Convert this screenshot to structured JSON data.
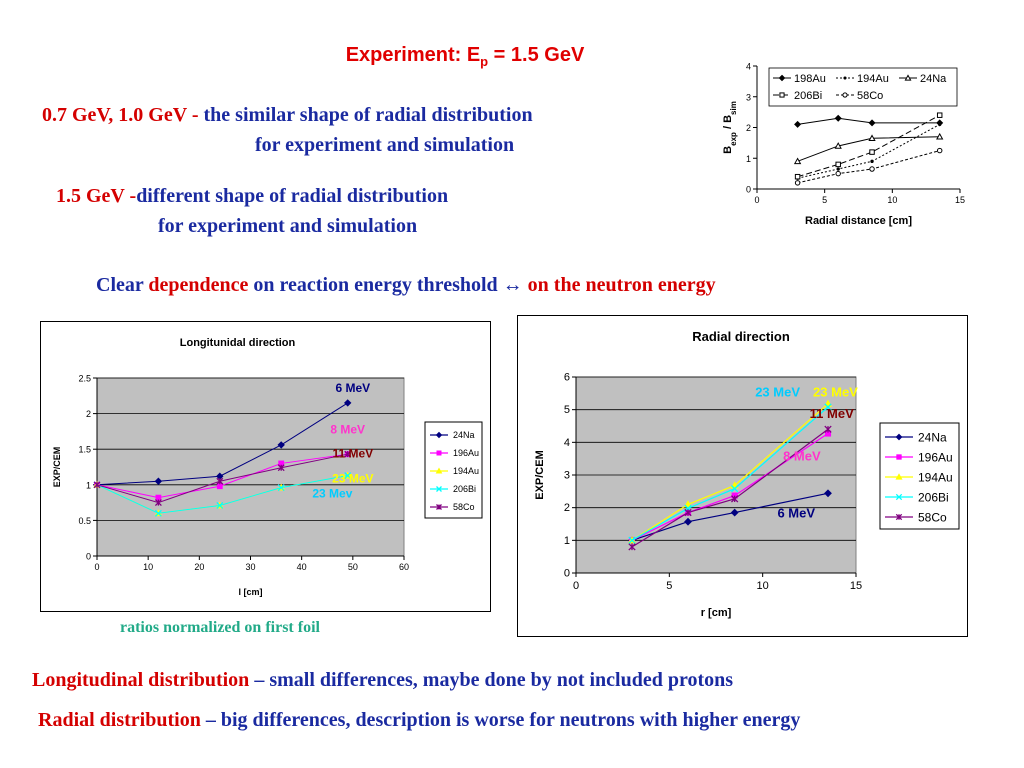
{
  "header": {
    "title_prefix": "Experiment: E",
    "title_sub": "p",
    "title_suffix": " = 1.5 GeV"
  },
  "statements": {
    "line1_red": "0.7 GeV, 1.0 GeV",
    "line1_dash": " - ",
    "line1_blue": "the similar shape of radial distribution",
    "line1b": "for experiment and simulation",
    "line2_red": "1.5 GeV",
    "line2_dash": " -",
    "line2_blue": "different shape of radial distribution",
    "line2b": "for experiment and simulation",
    "line3_a": "Clear ",
    "line3_b": "dependence",
    "line3_c": " on reaction energy threshold ↔ ",
    "line3_d": "on the neutron energy"
  },
  "caption": "ratios normalized on first foil",
  "conclusions": {
    "c1_red": "Longitudinal distribution",
    "c1_blue": " – small differences, maybe done by not included protons",
    "c2_red": "Radial distribution",
    "c2_blue": " – big differences, description is worse for neutrons with higher energy"
  },
  "chart_data": [
    {
      "id": "small_radial",
      "type": "line",
      "title": "",
      "xlabel": "Radial distance [cm]",
      "ylabel_main": "B",
      "ylabel_sub1": "exp",
      "ylabel_mid": " / B",
      "ylabel_sub2": "sim",
      "xlim": [
        0,
        15
      ],
      "ylim": [
        0,
        4
      ],
      "xticks": [
        "0",
        "5",
        "10",
        "15"
      ],
      "yticks": [
        "0",
        "1",
        "2",
        "3",
        "4"
      ],
      "legend_position": "top",
      "series": [
        {
          "name": "198Au",
          "x": [
            3,
            6,
            8.5,
            13.5
          ],
          "y": [
            2.1,
            2.3,
            2.15,
            2.15
          ],
          "color": "#000000",
          "marker": "diamond",
          "dash": ""
        },
        {
          "name": "194Au",
          "x": [
            3,
            6,
            8.5,
            13.5
          ],
          "y": [
            0.35,
            0.65,
            0.9,
            2.1
          ],
          "color": "#000000",
          "marker": "dot",
          "dash": "2,2"
        },
        {
          "name": "24Na",
          "x": [
            3,
            6,
            8.5,
            13.5
          ],
          "y": [
            0.9,
            1.4,
            1.65,
            1.7
          ],
          "color": "#000000",
          "marker": "triangle-open",
          "dash": ""
        },
        {
          "name": "206Bi",
          "x": [
            3,
            6,
            8.5,
            13.5
          ],
          "y": [
            0.4,
            0.8,
            1.2,
            2.4
          ],
          "color": "#000000",
          "marker": "square-open",
          "dash": "6,3"
        },
        {
          "name": "58Co",
          "x": [
            3,
            6,
            8.5,
            13.5
          ],
          "y": [
            0.2,
            0.5,
            0.65,
            1.25
          ],
          "color": "#000000",
          "marker": "circle-open",
          "dash": "3,2"
        }
      ]
    },
    {
      "id": "longitudinal",
      "type": "line",
      "title": "Longitunidal direction",
      "xlabel": "l [cm]",
      "ylabel": "EXP/CEM",
      "xlim": [
        0,
        60
      ],
      "ylim": [
        0,
        2.5
      ],
      "xticks": [
        "0",
        "10",
        "20",
        "30",
        "40",
        "50",
        "60"
      ],
      "yticks": [
        "0",
        "0.5",
        "1",
        "1.5",
        "2",
        "2.5"
      ],
      "legend_position": "right",
      "series": [
        {
          "name": "24Na",
          "x": [
            0,
            12,
            24,
            36,
            49
          ],
          "y": [
            1.0,
            1.05,
            1.12,
            1.56,
            2.15
          ],
          "color": "#000080",
          "marker": "diamond"
        },
        {
          "name": "196Au",
          "x": [
            0,
            12,
            24,
            36,
            49
          ],
          "y": [
            1.0,
            0.82,
            0.98,
            1.3,
            1.43
          ],
          "color": "#ff00ff",
          "marker": "square"
        },
        {
          "name": "194Au",
          "x": [
            0,
            12,
            24,
            36,
            49
          ],
          "y": [
            1.0,
            0.6,
            0.71,
            0.96,
            1.13
          ],
          "color": "#ffff00",
          "marker": "triangle"
        },
        {
          "name": "206Bi",
          "x": [
            0,
            12,
            24,
            36,
            49
          ],
          "y": [
            1.0,
            0.6,
            0.71,
            0.96,
            1.13
          ],
          "color": "#00ffff",
          "marker": "x"
        },
        {
          "name": "58Co",
          "x": [
            0,
            12,
            24,
            36,
            49
          ],
          "y": [
            1.0,
            0.75,
            1.05,
            1.24,
            1.43
          ],
          "color": "#800080",
          "marker": "star"
        }
      ],
      "annotations": [
        {
          "text": "6 MeV",
          "x": 50,
          "y": 2.3,
          "color": "#000080"
        },
        {
          "text": "8 MeV",
          "x": 49,
          "y": 1.72,
          "color": "#ff33cc"
        },
        {
          "text": "11 MeV",
          "x": 50,
          "y": 1.38,
          "color": "#800000"
        },
        {
          "text": "23 MeV",
          "x": 50,
          "y": 1.03,
          "color": "#ffff00"
        },
        {
          "text": "23 Mev",
          "x": 46,
          "y": 0.82,
          "color": "#00ccff"
        }
      ]
    },
    {
      "id": "radial",
      "type": "line",
      "title": "Radial direction",
      "xlabel": "r [cm]",
      "ylabel": "EXP/CEM",
      "xlim": [
        0,
        15
      ],
      "ylim": [
        0,
        6
      ],
      "xticks": [
        "0",
        "5",
        "10",
        "15"
      ],
      "yticks": [
        "0",
        "1",
        "2",
        "3",
        "4",
        "5",
        "6"
      ],
      "legend_position": "right",
      "series": [
        {
          "name": "24Na",
          "x": [
            3,
            6,
            8.5,
            13.5
          ],
          "y": [
            1.0,
            1.57,
            1.85,
            2.44
          ],
          "color": "#000080",
          "marker": "diamond"
        },
        {
          "name": "196Au",
          "x": [
            3,
            6,
            8.5,
            13.5
          ],
          "y": [
            1.0,
            1.85,
            2.37,
            4.27
          ],
          "color": "#ff00ff",
          "marker": "square"
        },
        {
          "name": "194Au",
          "x": [
            3,
            6,
            8.5,
            13.5
          ],
          "y": [
            1.0,
            2.1,
            2.68,
            5.18
          ],
          "color": "#ffff00",
          "marker": "triangle"
        },
        {
          "name": "206Bi",
          "x": [
            3,
            6,
            8.5,
            13.5
          ],
          "y": [
            1.0,
            1.98,
            2.58,
            5.08
          ],
          "color": "#00ffff",
          "marker": "x"
        },
        {
          "name": "58Co",
          "x": [
            3,
            6,
            8.5,
            13.5
          ],
          "y": [
            0.8,
            1.85,
            2.27,
            4.4
          ],
          "color": "#800080",
          "marker": "star"
        }
      ],
      "annotations": [
        {
          "text": "23 MeV",
          "x": 10.8,
          "y": 5.4,
          "color": "#00ccff"
        },
        {
          "text": "23 MeV",
          "x": 13.9,
          "y": 5.4,
          "color": "#ffff00"
        },
        {
          "text": "11 MeV",
          "x": 13.7,
          "y": 4.75,
          "color": "#800000"
        },
        {
          "text": "8 MeV",
          "x": 12.1,
          "y": 3.45,
          "color": "#ff33cc"
        },
        {
          "text": "6 MeV",
          "x": 11.8,
          "y": 1.7,
          "color": "#000080"
        }
      ]
    }
  ]
}
